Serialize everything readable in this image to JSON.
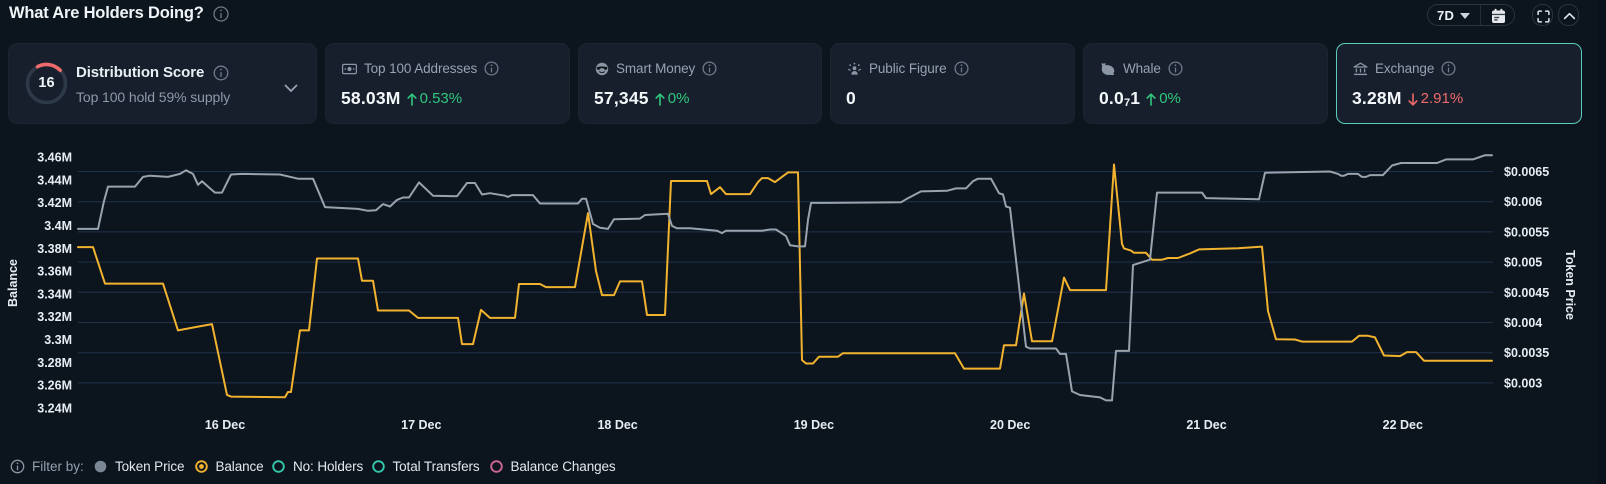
{
  "header": {
    "title": "What Are Holders Doing?",
    "range_selector": {
      "value": "7D"
    },
    "icons": {
      "info": "info-circle",
      "calendar": "calendar",
      "fullscreen": "expand-corners",
      "collapse": "chevron-up"
    }
  },
  "cards": {
    "distribution_score": {
      "score": "16",
      "title": "Distribution Score",
      "subtitle": "Top 100 hold 59% supply",
      "gauge_color": "#ef6a6a"
    },
    "stats": [
      {
        "id": "top-100-addresses",
        "icon": "banknote-icon",
        "label": "Top 100 Addresses",
        "value": "58.03M",
        "change": "0.53%",
        "direction": "up",
        "change_color": "#31c77f"
      },
      {
        "id": "smart-money",
        "icon": "smart-money-face-icon",
        "label": "Smart Money",
        "value": "57,345",
        "change": "0%",
        "direction": "up",
        "change_color": "#31c77f"
      },
      {
        "id": "public-figure",
        "icon": "public-figure-icon",
        "label": "Public Figure",
        "value": "0",
        "change": "",
        "direction": "",
        "change_color": ""
      },
      {
        "id": "whale",
        "icon": "whale-icon",
        "label": "Whale",
        "value_prefix": "0.0",
        "value_sub": "7",
        "value_suffix": "1",
        "change": "0%",
        "direction": "up",
        "change_color": "#31c77f"
      },
      {
        "id": "exchange",
        "icon": "bank-icon",
        "label": "Exchange",
        "value": "3.28M",
        "change": "2.91%",
        "direction": "down",
        "change_color": "#ee6a6a",
        "selected": true,
        "border_color": "#63d8c5"
      }
    ]
  },
  "chart_data": {
    "type": "line",
    "title": "What Are Holders Doing?",
    "x_axis": {
      "unit": "day of December",
      "tick_days": [
        16,
        17,
        18,
        19,
        20,
        21,
        22
      ],
      "tick_labels": [
        "16 Dec",
        "17 Dec",
        "18 Dec",
        "19 Dec",
        "20 Dec",
        "21 Dec",
        "22 Dec"
      ]
    },
    "left_axis": {
      "title": "Balance",
      "ticks": [
        3.24,
        3.26,
        3.28,
        3.3,
        3.32,
        3.34,
        3.36,
        3.38,
        3.4,
        3.42,
        3.44,
        3.46
      ],
      "tick_labels": [
        "3.24M",
        "3.26M",
        "3.28M",
        "3.3M",
        "3.32M",
        "3.34M",
        "3.36M",
        "3.38M",
        "3.4M",
        "3.42M",
        "3.44M",
        "3.46M"
      ],
      "range": [
        3.24,
        3.46
      ]
    },
    "right_axis": {
      "title": "Token Price",
      "ticks": [
        0.003,
        0.0035,
        0.004,
        0.0045,
        0.005,
        0.0055,
        0.006,
        0.0065
      ],
      "tick_labels": [
        "$0.003",
        "$0.0035",
        "$0.004",
        "$0.0045",
        "$0.005",
        "$0.0055",
        "$0.006",
        "$0.0065"
      ],
      "range": [
        0.003,
        0.0065
      ],
      "grid": true
    },
    "series": [
      {
        "name": "Balance",
        "axis": "left",
        "color": "#f1b32f",
        "points": [
          [
            15.2511,
            3.381
          ],
          [
            15.3276,
            3.381
          ],
          [
            15.3887,
            3.349
          ],
          [
            15.6842,
            3.349
          ],
          [
            15.7606,
            3.308
          ],
          [
            15.8523,
            3.311
          ],
          [
            15.9338,
            3.3135
          ],
          [
            16.0102,
            3.2515
          ],
          [
            16.0306,
            3.25
          ],
          [
            16.3057,
            3.2495
          ],
          [
            16.3209,
            3.254
          ],
          [
            16.3362,
            3.254
          ],
          [
            16.3821,
            3.308
          ],
          [
            16.4279,
            3.308
          ],
          [
            16.4687,
            3.371
          ],
          [
            16.6775,
            3.371
          ],
          [
            16.6979,
            3.3515
          ],
          [
            16.7539,
            3.3515
          ],
          [
            16.7794,
            3.3255
          ],
          [
            16.9373,
            3.3255
          ],
          [
            16.9832,
            3.319
          ],
          [
            17.187,
            3.319
          ],
          [
            17.2073,
            3.296
          ],
          [
            17.2634,
            3.296
          ],
          [
            17.3041,
            3.326
          ],
          [
            17.35,
            3.319
          ],
          [
            17.4773,
            3.319
          ],
          [
            17.4977,
            3.3487
          ],
          [
            17.6047,
            3.3487
          ],
          [
            17.6353,
            3.346
          ],
          [
            17.783,
            3.346
          ],
          [
            17.8492,
            3.4108
          ],
          [
            17.89,
            3.36
          ],
          [
            17.9205,
            3.339
          ],
          [
            17.9817,
            3.339
          ],
          [
            18.0122,
            3.351
          ],
          [
            18.1243,
            3.351
          ],
          [
            18.1498,
            3.3215
          ],
          [
            18.2415,
            3.3215
          ],
          [
            18.272,
            3.439
          ],
          [
            18.4554,
            3.439
          ],
          [
            18.4758,
            3.4275
          ],
          [
            18.5217,
            3.4335
          ],
          [
            18.5522,
            3.4275
          ],
          [
            18.6745,
            3.4275
          ],
          [
            18.7152,
            3.438
          ],
          [
            18.7356,
            3.4415
          ],
          [
            18.7662,
            3.4415
          ],
          [
            18.8018,
            3.438
          ],
          [
            18.8681,
            3.4465
          ],
          [
            18.919,
            3.4465
          ],
          [
            18.9394,
            3.282
          ],
          [
            18.9598,
            3.279
          ],
          [
            18.9954,
            3.279
          ],
          [
            19.026,
            3.285
          ],
          [
            19.1228,
            3.285
          ],
          [
            19.1482,
            3.288
          ],
          [
            19.7188,
            3.288
          ],
          [
            19.7646,
            3.2745
          ],
          [
            19.948,
            3.2745
          ],
          [
            19.9684,
            3.295
          ],
          [
            20.0295,
            3.295
          ],
          [
            20.0703,
            3.3404
          ],
          [
            20.1111,
            3.2985
          ],
          [
            20.2129,
            3.2985
          ],
          [
            20.2741,
            3.3543
          ],
          [
            20.3046,
            3.3433
          ],
          [
            20.488,
            3.3433
          ],
          [
            20.5288,
            3.4534
          ],
          [
            20.5695,
            3.3838
          ],
          [
            20.5797,
            3.3799
          ],
          [
            20.6154,
            3.378
          ],
          [
            20.6307,
            3.376
          ],
          [
            20.6918,
            3.376
          ],
          [
            20.7224,
            3.37
          ],
          [
            20.7733,
            3.37
          ],
          [
            20.8039,
            3.3715
          ],
          [
            20.8548,
            3.3715
          ],
          [
            20.9159,
            3.3755
          ],
          [
            20.9618,
            3.379
          ],
          [
            21.1605,
            3.38
          ],
          [
            21.2827,
            3.3815
          ],
          [
            21.3133,
            3.325
          ],
          [
            21.354,
            3.3002
          ],
          [
            21.4508,
            3.3
          ],
          [
            21.4865,
            3.2982
          ],
          [
            21.7412,
            3.2982
          ],
          [
            21.7769,
            3.3033
          ],
          [
            21.8227,
            3.3033
          ],
          [
            21.8584,
            3.3019
          ],
          [
            21.9042,
            3.286
          ],
          [
            21.9857,
            3.2855
          ],
          [
            22.0214,
            3.289
          ],
          [
            22.0672,
            3.289
          ],
          [
            22.108,
            3.2815
          ],
          [
            22.4544,
            3.2815
          ]
        ]
      },
      {
        "name": "Token Price",
        "axis": "right",
        "color": "#99a3ae",
        "points": [
          [
            15.2511,
            0.00555
          ],
          [
            15.353,
            0.00555
          ],
          [
            15.3836,
            0.00601
          ],
          [
            15.404,
            0.00625
          ],
          [
            15.5415,
            0.00625
          ],
          [
            15.5823,
            0.00641
          ],
          [
            15.6179,
            0.00643
          ],
          [
            15.7096,
            0.00641
          ],
          [
            15.7708,
            0.00646
          ],
          [
            15.8013,
            0.00652
          ],
          [
            15.837,
            0.00646
          ],
          [
            15.8625,
            0.00628
          ],
          [
            15.8828,
            0.00634
          ],
          [
            15.9236,
            0.00622
          ],
          [
            15.9491,
            0.00615
          ],
          [
            15.9847,
            0.00615
          ],
          [
            16.0306,
            0.00645
          ],
          [
            16.0866,
            0.00646
          ],
          [
            16.2802,
            0.00645
          ],
          [
            16.3719,
            0.00638
          ],
          [
            16.4483,
            0.00638
          ],
          [
            16.5094,
            0.00591
          ],
          [
            16.6775,
            0.00588
          ],
          [
            16.7285,
            0.00585
          ],
          [
            16.7692,
            0.00586
          ],
          [
            16.8049,
            0.00596
          ],
          [
            16.8406,
            0.00592
          ],
          [
            16.8762,
            0.00603
          ],
          [
            16.9068,
            0.00607
          ],
          [
            16.9373,
            0.00607
          ],
          [
            16.9883,
            0.00632
          ],
          [
            17.0596,
            0.0061
          ],
          [
            17.1819,
            0.00609
          ],
          [
            17.2328,
            0.00631
          ],
          [
            17.2736,
            0.00631
          ],
          [
            17.3092,
            0.00612
          ],
          [
            17.35,
            0.00614
          ],
          [
            17.4264,
            0.0061
          ],
          [
            17.4417,
            0.00608
          ],
          [
            17.462,
            0.00611
          ],
          [
            17.569,
            0.00611
          ],
          [
            17.6047,
            0.00597
          ],
          [
            17.7983,
            0.00597
          ],
          [
            17.8186,
            0.00605
          ],
          [
            17.839,
            0.00605
          ],
          [
            17.8747,
            0.00563
          ],
          [
            17.9103,
            0.00557
          ],
          [
            17.9511,
            0.00555
          ],
          [
            17.9817,
            0.00571
          ],
          [
            18.1141,
            0.00572
          ],
          [
            18.1396,
            0.00578
          ],
          [
            18.2567,
            0.0058
          ],
          [
            18.2771,
            0.0056
          ],
          [
            18.3026,
            0.00556
          ],
          [
            18.3688,
            0.00556
          ],
          [
            18.5064,
            0.00552
          ],
          [
            18.5318,
            0.00548
          ],
          [
            18.5522,
            0.00552
          ],
          [
            18.7356,
            0.00552
          ],
          [
            18.7764,
            0.00554
          ],
          [
            18.8069,
            0.00554
          ],
          [
            18.8579,
            0.00543
          ],
          [
            18.8782,
            0.00528
          ],
          [
            18.919,
            0.00526
          ],
          [
            18.9547,
            0.00526
          ],
          [
            18.9699,
            0.0057
          ],
          [
            18.9852,
            0.00598
          ],
          [
            19.0667,
            0.00598
          ],
          [
            19.4437,
            0.00599
          ],
          [
            19.4743,
            0.00605
          ],
          [
            19.5456,
            0.00617
          ],
          [
            19.678,
            0.00618
          ],
          [
            19.7239,
            0.00622
          ],
          [
            19.7748,
            0.00622
          ],
          [
            19.8105,
            0.00634
          ],
          [
            19.836,
            0.00638
          ],
          [
            19.9022,
            0.00638
          ],
          [
            19.9429,
            0.00614
          ],
          [
            19.9633,
            0.00612
          ],
          [
            19.9786,
            0.00592
          ],
          [
            19.999,
            0.0059
          ],
          [
            20.0805,
            0.0036
          ],
          [
            20.1009,
            0.00357
          ],
          [
            20.2333,
            0.00357
          ],
          [
            20.2537,
            0.00348
          ],
          [
            20.2843,
            0.00348
          ],
          [
            20.3148,
            0.00286
          ],
          [
            20.3556,
            0.0028
          ],
          [
            20.4575,
            0.00276
          ],
          [
            20.488,
            0.00271
          ],
          [
            20.5186,
            0.00271
          ],
          [
            20.539,
            0.00353
          ],
          [
            20.6052,
            0.00353
          ],
          [
            20.6256,
            0.00495
          ],
          [
            20.6918,
            0.00502
          ],
          [
            20.7122,
            0.00504
          ],
          [
            20.7478,
            0.00615
          ],
          [
            20.9771,
            0.00615
          ],
          [
            20.9975,
            0.00606
          ],
          [
            21.2674,
            0.00604
          ],
          [
            21.298,
            0.00648
          ],
          [
            21.6291,
            0.0065
          ],
          [
            21.6699,
            0.00646
          ],
          [
            21.6852,
            0.00643
          ],
          [
            21.7005,
            0.00643
          ],
          [
            21.7208,
            0.00646
          ],
          [
            21.7718,
            0.00646
          ],
          [
            21.7922,
            0.00641
          ],
          [
            21.8125,
            0.00641
          ],
          [
            21.8329,
            0.00644
          ],
          [
            21.8991,
            0.00644
          ],
          [
            21.945,
            0.0066
          ],
          [
            21.9908,
            0.00664
          ],
          [
            22.1742,
            0.00664
          ],
          [
            22.2201,
            0.0067
          ],
          [
            22.3576,
            0.0067
          ],
          [
            22.4187,
            0.00677
          ],
          [
            22.4544,
            0.00677
          ]
        ]
      }
    ]
  },
  "legend": {
    "info_icon": "info-circle",
    "label": "Filter by:",
    "items": [
      {
        "name": "Token Price",
        "marker": "dot",
        "color": "#7c8795",
        "active": true
      },
      {
        "name": "Balance",
        "marker": "radio-selected",
        "color": "#f1b32f",
        "active": true
      },
      {
        "name": "No: Holders",
        "marker": "ring",
        "color": "#35c9ac",
        "active": false
      },
      {
        "name": "Total Transfers",
        "marker": "ring",
        "color": "#35c9ac",
        "active": false
      },
      {
        "name": "Balance Changes",
        "marker": "ring",
        "color": "#cf6699",
        "active": false
      }
    ]
  },
  "colors": {
    "background": "#0c141e",
    "card_background": "#161f2b",
    "accent_teal": "#63d8c5",
    "positive": "#31c77f",
    "negative": "#ee6a6a",
    "balance_line": "#f1b32f",
    "price_line": "#99a3ae"
  }
}
